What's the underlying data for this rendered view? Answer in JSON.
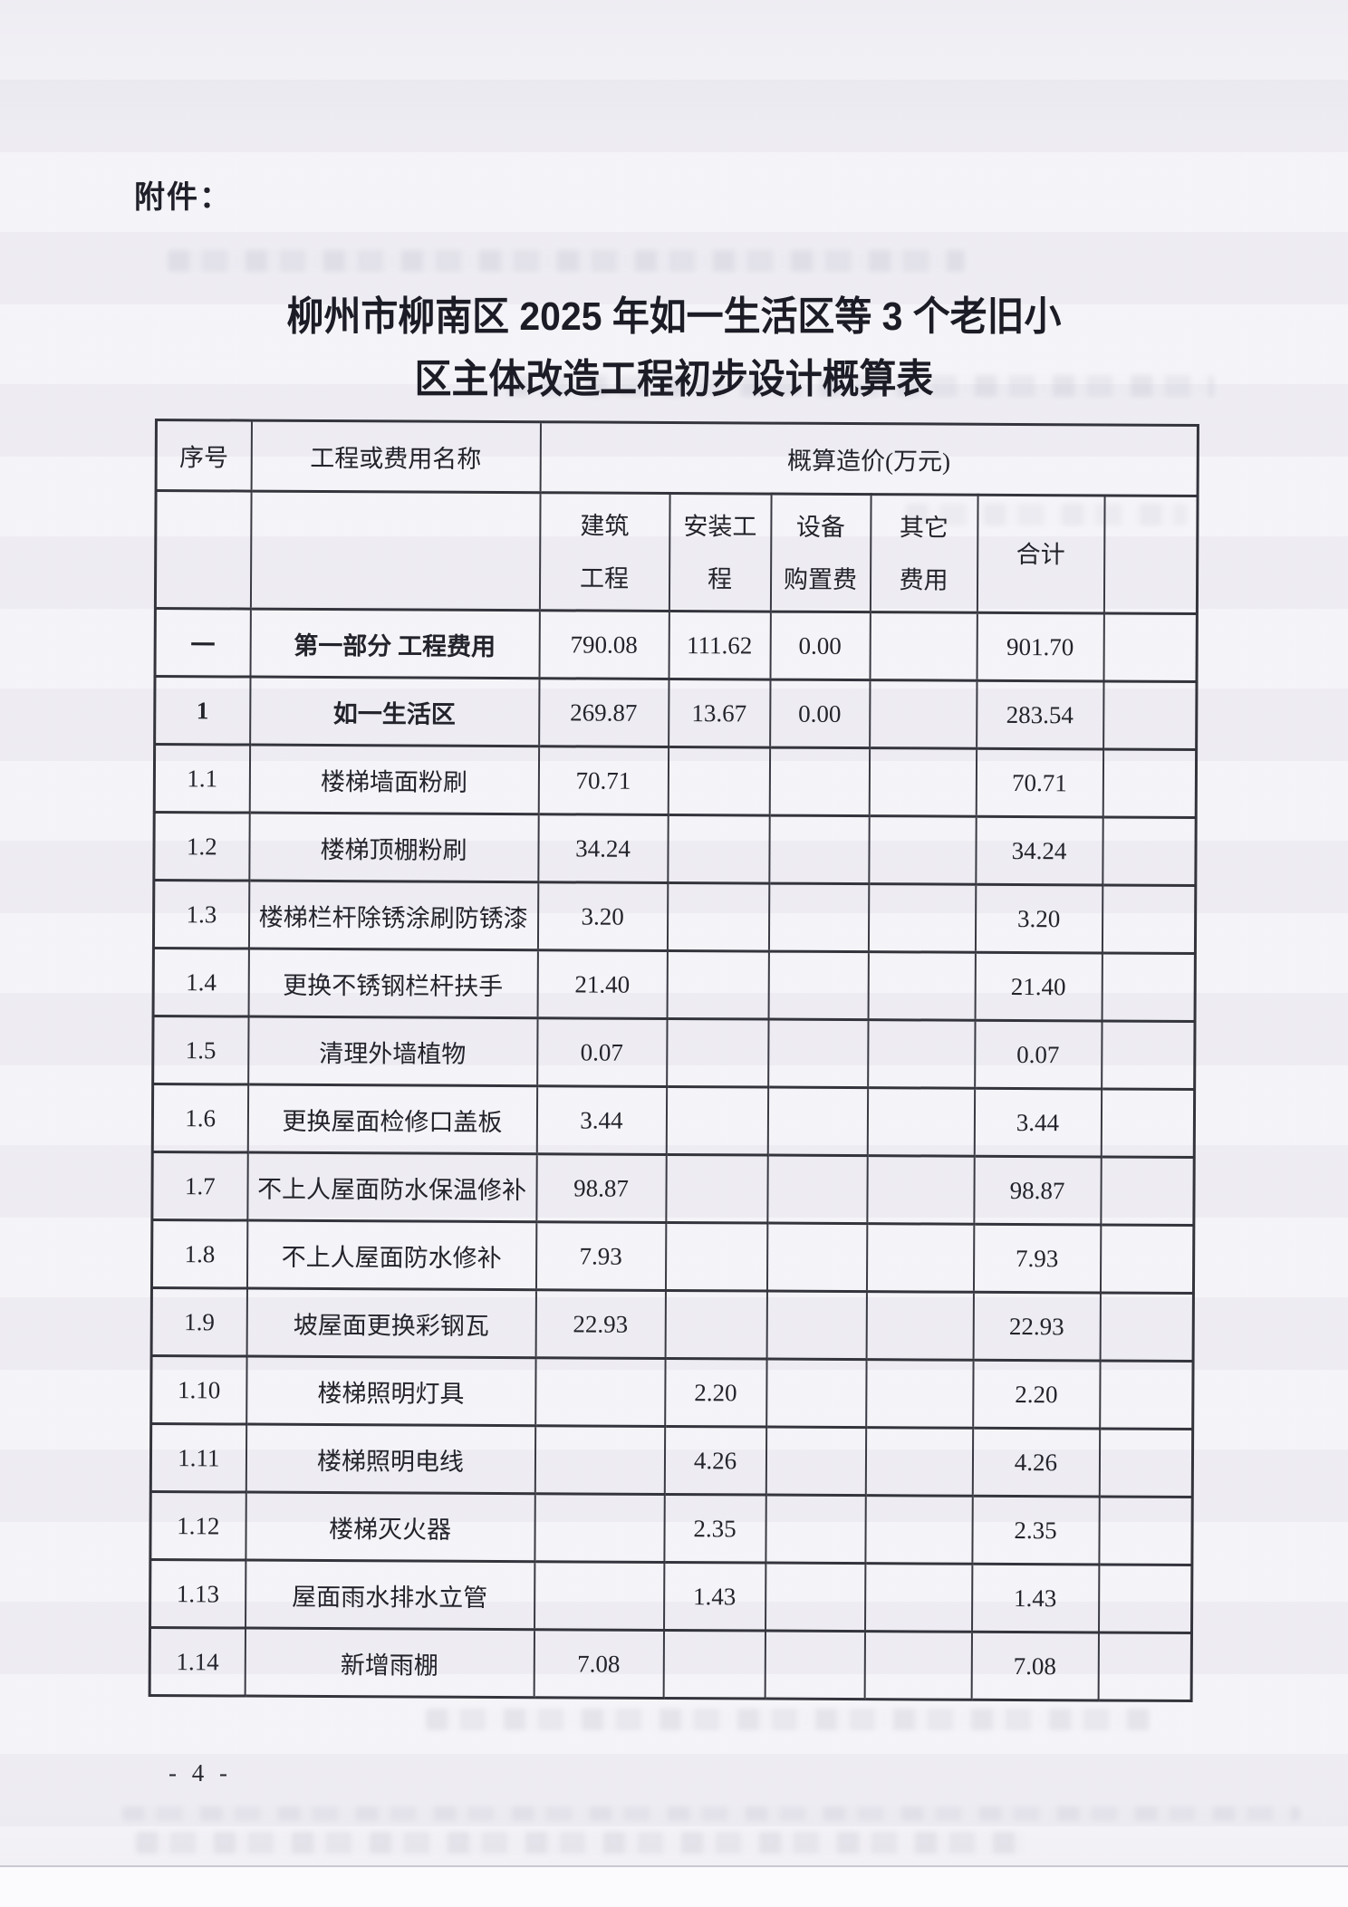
{
  "page": {
    "attachment_label": "附件：",
    "title_line1": "柳州市柳南区 2025 年如一生活区等 3 个老旧小",
    "title_line2": "区主体改造工程初步设计概算表",
    "page_number": "- 4 -"
  },
  "table": {
    "columns": {
      "seq": "序号",
      "name": "工程或费用名称",
      "cost_group": "概算造价(万元)"
    },
    "sub_headers": {
      "construction": "建筑\n工程",
      "installation": "安装工\n程",
      "equipment": "设备\n购置费",
      "other": "其它\n费用",
      "total": "合计",
      "extra": ""
    },
    "rows": [
      {
        "seq": "一",
        "name": "第一部分 工程费用",
        "construction": "790.08",
        "installation": "111.62",
        "equipment": "0.00",
        "other": "",
        "total": "901.70",
        "extra": "",
        "bold": true
      },
      {
        "seq": "1",
        "name": "如一生活区",
        "construction": "269.87",
        "installation": "13.67",
        "equipment": "0.00",
        "other": "",
        "total": "283.54",
        "extra": "",
        "bold": true
      },
      {
        "seq": "1.1",
        "name": "楼梯墙面粉刷",
        "construction": "70.71",
        "installation": "",
        "equipment": "",
        "other": "",
        "total": "70.71",
        "extra": "",
        "bold": false
      },
      {
        "seq": "1.2",
        "name": "楼梯顶棚粉刷",
        "construction": "34.24",
        "installation": "",
        "equipment": "",
        "other": "",
        "total": "34.24",
        "extra": "",
        "bold": false
      },
      {
        "seq": "1.3",
        "name": "楼梯栏杆除锈涂刷防锈漆",
        "construction": "3.20",
        "installation": "",
        "equipment": "",
        "other": "",
        "total": "3.20",
        "extra": "",
        "bold": false
      },
      {
        "seq": "1.4",
        "name": "更换不锈钢栏杆扶手",
        "construction": "21.40",
        "installation": "",
        "equipment": "",
        "other": "",
        "total": "21.40",
        "extra": "",
        "bold": false
      },
      {
        "seq": "1.5",
        "name": "清理外墙植物",
        "construction": "0.07",
        "installation": "",
        "equipment": "",
        "other": "",
        "total": "0.07",
        "extra": "",
        "bold": false
      },
      {
        "seq": "1.6",
        "name": "更换屋面检修口盖板",
        "construction": "3.44",
        "installation": "",
        "equipment": "",
        "other": "",
        "total": "3.44",
        "extra": "",
        "bold": false
      },
      {
        "seq": "1.7",
        "name": "不上人屋面防水保温修补",
        "construction": "98.87",
        "installation": "",
        "equipment": "",
        "other": "",
        "total": "98.87",
        "extra": "",
        "bold": false
      },
      {
        "seq": "1.8",
        "name": "不上人屋面防水修补",
        "construction": "7.93",
        "installation": "",
        "equipment": "",
        "other": "",
        "total": "7.93",
        "extra": "",
        "bold": false
      },
      {
        "seq": "1.9",
        "name": "坡屋面更换彩钢瓦",
        "construction": "22.93",
        "installation": "",
        "equipment": "",
        "other": "",
        "total": "22.93",
        "extra": "",
        "bold": false
      },
      {
        "seq": "1.10",
        "name": "楼梯照明灯具",
        "construction": "",
        "installation": "2.20",
        "equipment": "",
        "other": "",
        "total": "2.20",
        "extra": "",
        "bold": false
      },
      {
        "seq": "1.11",
        "name": "楼梯照明电线",
        "construction": "",
        "installation": "4.26",
        "equipment": "",
        "other": "",
        "total": "4.26",
        "extra": "",
        "bold": false
      },
      {
        "seq": "1.12",
        "name": "楼梯灭火器",
        "construction": "",
        "installation": "2.35",
        "equipment": "",
        "other": "",
        "total": "2.35",
        "extra": "",
        "bold": false
      },
      {
        "seq": "1.13",
        "name": "屋面雨水排水立管",
        "construction": "",
        "installation": "1.43",
        "equipment": "",
        "other": "",
        "total": "1.43",
        "extra": "",
        "bold": false
      },
      {
        "seq": "1.14",
        "name": "新增雨棚",
        "construction": "7.08",
        "installation": "",
        "equipment": "",
        "other": "",
        "total": "7.08",
        "extra": "",
        "bold": false
      }
    ]
  }
}
